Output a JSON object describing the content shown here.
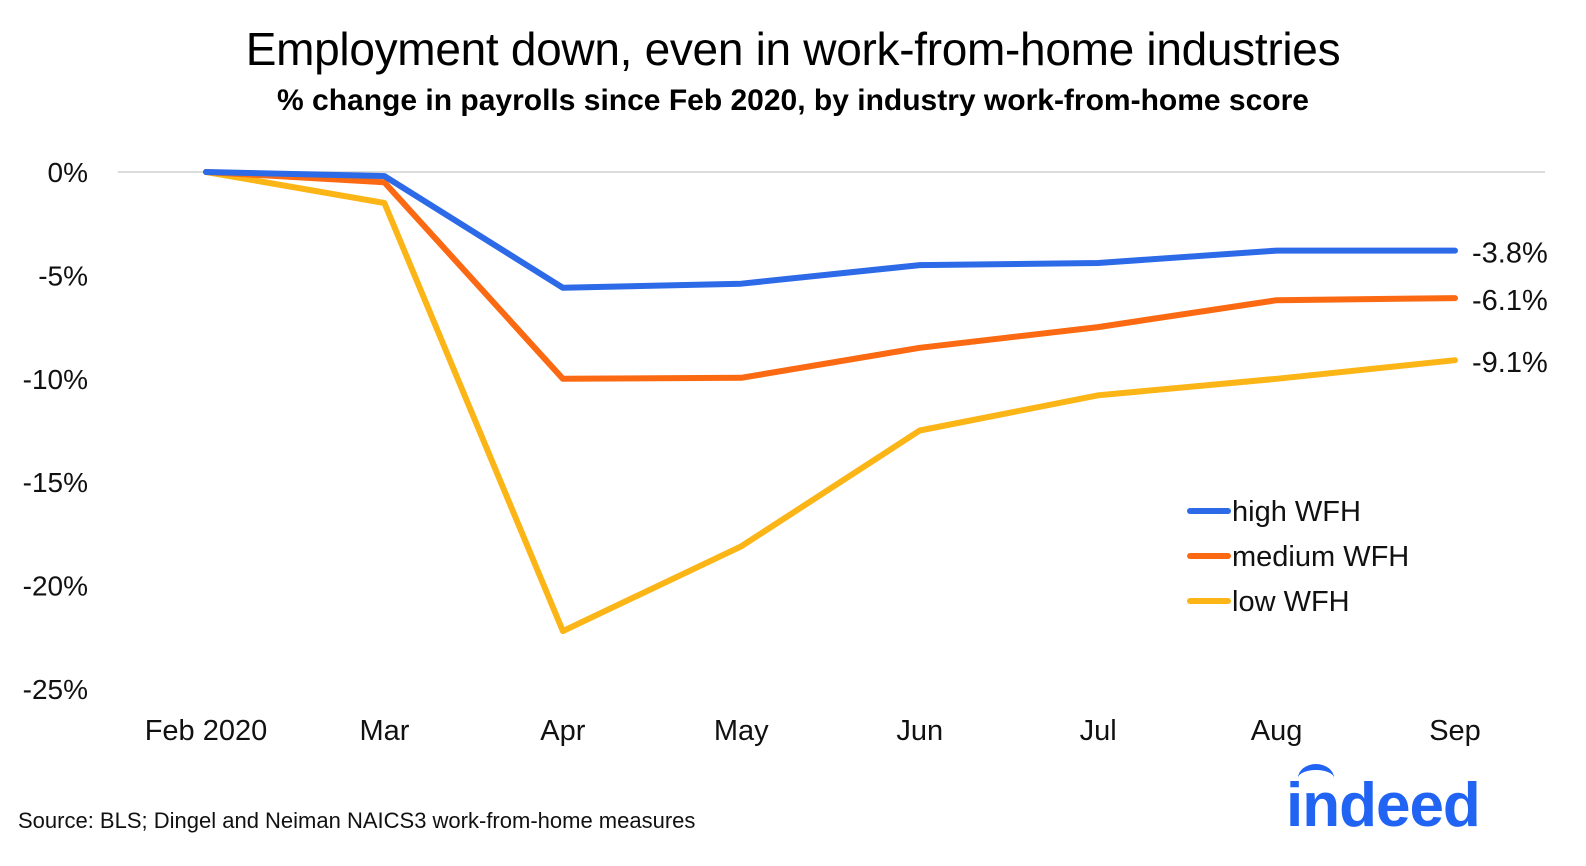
{
  "header": {
    "title": "Employment down, even in work-from-home industries",
    "subtitle": "% change in payrolls since Feb 2020, by industry work-from-home score"
  },
  "footer": {
    "source": "Source: BLS; Dingel and Neiman NAICS3 work-from-home measures"
  },
  "logo": {
    "text": "indeed",
    "color": "#2164f3"
  },
  "chart_data": {
    "type": "line",
    "categories": [
      "Feb 2020",
      "Mar",
      "Apr",
      "May",
      "Jun",
      "Jul",
      "Aug",
      "Sep"
    ],
    "ylim": [
      -25,
      0
    ],
    "yticks": [
      0,
      -5,
      -10,
      -15,
      -20,
      -25
    ],
    "ytick_labels": [
      "0%",
      "-5%",
      "-10%",
      "-15%",
      "-20%",
      "-25%"
    ],
    "grid": "zero line only",
    "legend_position": "bottom-right",
    "series": [
      {
        "name": "high WFH",
        "color": "#2d6ae8",
        "values": [
          0,
          -0.2,
          -5.6,
          -5.4,
          -4.5,
          -4.4,
          -3.8,
          -3.8
        ],
        "end_label": "-3.8%"
      },
      {
        "name": "medium WFH",
        "color": "#fb6a12",
        "values": [
          0,
          -0.5,
          -10.0,
          -9.95,
          -8.5,
          -7.5,
          -6.2,
          -6.1
        ],
        "end_label": "-6.1%"
      },
      {
        "name": "low WFH",
        "color": "#fbb516",
        "values": [
          0,
          -1.5,
          -22.2,
          -18.1,
          -12.5,
          -10.8,
          -10.0,
          -9.1
        ],
        "end_label": "-9.1%"
      }
    ]
  }
}
